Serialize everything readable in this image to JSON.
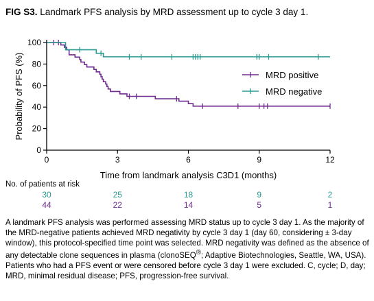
{
  "figure": {
    "label": "FIG S3.",
    "title": "Landmark PFS analysis by MRD assessment up to cycle 3 day 1."
  },
  "colors": {
    "mrd_positive": "#6f2a8f",
    "mrd_negative": "#2a9a90",
    "axis": "#000000"
  },
  "chart_data": {
    "type": "line",
    "subtype": "kaplan-meier step curve",
    "xlabel": "Time from landmark analysis C3D1 (months)",
    "ylabel": "Probability of PFS (%)",
    "xlim": [
      0,
      12
    ],
    "ylim": [
      0,
      100
    ],
    "xticks": [
      0,
      3,
      6,
      9,
      12
    ],
    "yticks": [
      0,
      20,
      40,
      60,
      80,
      100
    ],
    "grid": false,
    "legend_position": "right",
    "series": [
      {
        "name": "MRD positive",
        "color": "#6f2a8f",
        "steps": [
          [
            0,
            100
          ],
          [
            0.55,
            100
          ],
          [
            0.6,
            97.7
          ],
          [
            0.75,
            95.5
          ],
          [
            0.85,
            93.2
          ],
          [
            0.95,
            88.6
          ],
          [
            1.2,
            86.4
          ],
          [
            1.4,
            84.1
          ],
          [
            1.45,
            81.8
          ],
          [
            1.6,
            79.5
          ],
          [
            1.7,
            77.3
          ],
          [
            2.0,
            75.0
          ],
          [
            2.1,
            72.7
          ],
          [
            2.25,
            70.5
          ],
          [
            2.3,
            68.2
          ],
          [
            2.35,
            65.9
          ],
          [
            2.4,
            63.6
          ],
          [
            2.5,
            61.4
          ],
          [
            2.55,
            59.1
          ],
          [
            2.6,
            56.8
          ],
          [
            2.7,
            54.5
          ],
          [
            3.1,
            52.3
          ],
          [
            3.4,
            50.0
          ],
          [
            4.6,
            47.7
          ],
          [
            5.6,
            45.5
          ],
          [
            6.0,
            43.2
          ],
          [
            6.2,
            40.9
          ],
          [
            12,
            40.9
          ]
        ],
        "censored": [
          0.3,
          0.5,
          3.5,
          3.8,
          5.5,
          6.6,
          8.1,
          9.0,
          9.2,
          9.35,
          12
        ]
      },
      {
        "name": "MRD negative",
        "color": "#2a9a90",
        "steps": [
          [
            0,
            100
          ],
          [
            0.6,
            100
          ],
          [
            0.8,
            93.3
          ],
          [
            2.1,
            90.0
          ],
          [
            2.4,
            86.7
          ],
          [
            12,
            86.7
          ]
        ],
        "censored": [
          1.4,
          2.3,
          3.5,
          4.0,
          5.3,
          6.2,
          6.3,
          6.4,
          6.5,
          8.9,
          9.0,
          9.4,
          11.5
        ]
      }
    ],
    "risk_table": {
      "header": "No. of patients at risk",
      "times": [
        0,
        3,
        6,
        9,
        12
      ],
      "rows": [
        {
          "series": "MRD negative",
          "counts": [
            "30",
            "25",
            "18",
            "9",
            "2"
          ]
        },
        {
          "series": "MRD positive",
          "counts": [
            "44",
            "22",
            "14",
            "5",
            "1"
          ]
        }
      ]
    }
  },
  "caption": {
    "part1": "A landmark PFS analysis was performed assessing MRD status up to cycle 3 day 1. As the majority of the MRD-negative patients achieved MRD negativity by cycle 3 day 1 (day 60, considering ± 3-day window), this protocol-specified time point was selected. MRD negativity was defined as the absence of any detectable clone sequences in plasma (clonoSEQ",
    "sup": "®",
    "part2": "; Adaptive Biotechnologies, Seattle, WA, USA). Patients who had a PFS event or were censored before cycle 3 day 1 were excluded. C, cycle; D, day; MRD, minimal residual disease; PFS, progression-free survival."
  }
}
